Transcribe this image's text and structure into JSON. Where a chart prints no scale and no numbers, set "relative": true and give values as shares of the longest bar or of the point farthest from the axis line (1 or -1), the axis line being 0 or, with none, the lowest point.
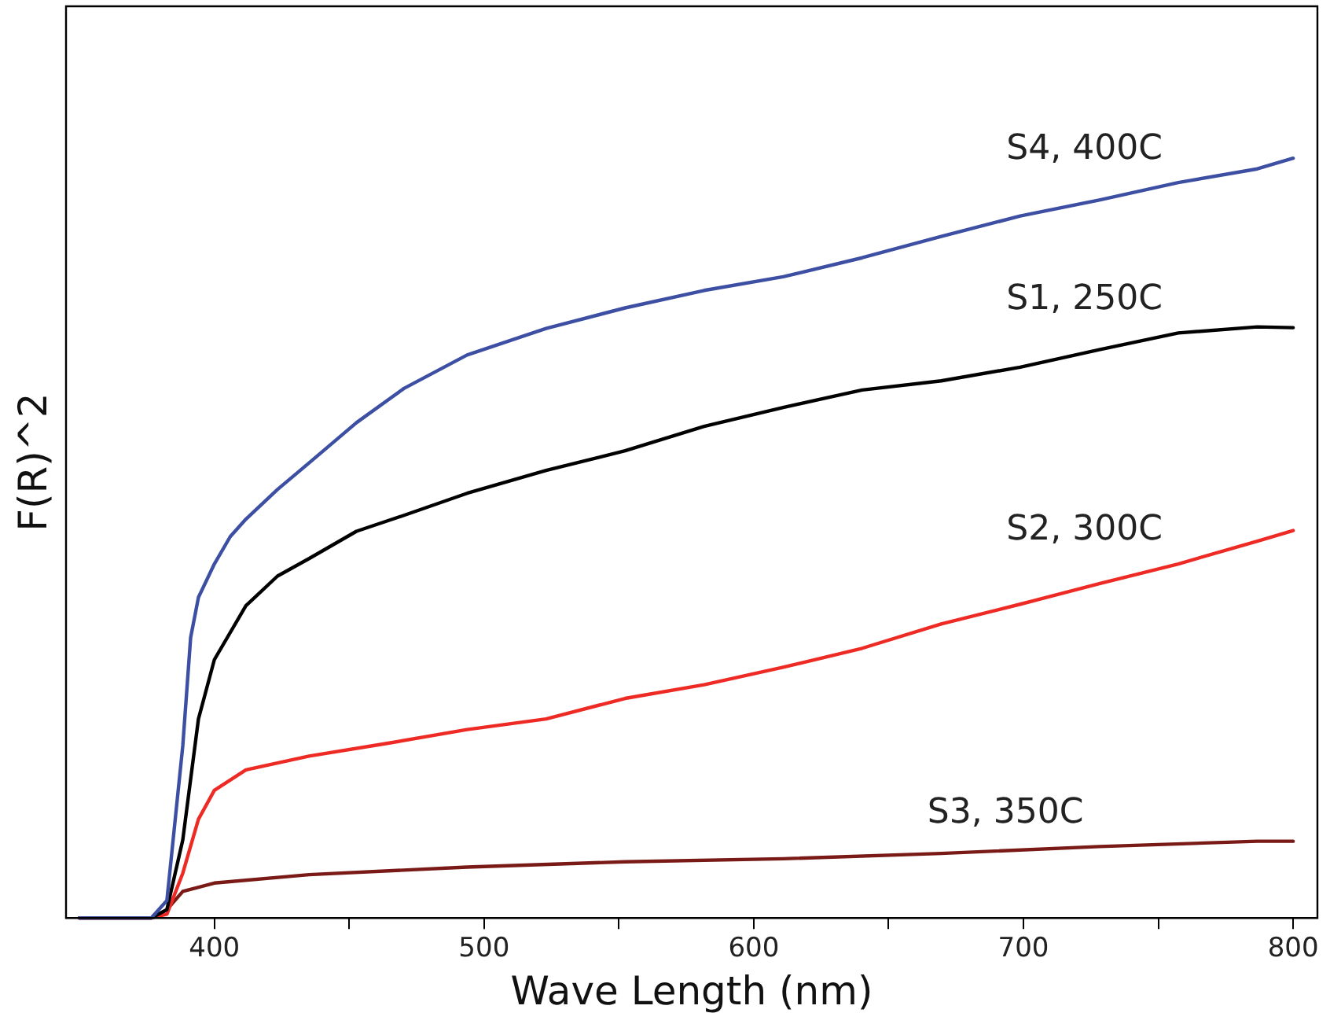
{
  "chart_data": {
    "type": "line",
    "xlabel": "Wave Length (nm)",
    "ylabel": "F(R)^2",
    "relative": true,
    "xlim": [
      345,
      809
    ],
    "xticks": [
      400,
      {
        "value": 450,
        "label": null
      },
      500,
      {
        "value": 550,
        "label": null
      },
      600,
      {
        "value": 650,
        "label": null
      },
      700,
      {
        "value": 750,
        "label": null
      },
      800
    ],
    "grid": false,
    "legend": false,
    "marker": "none",
    "line_style": "solid",
    "series": [
      {
        "name": "S4, 400C",
        "color": "#3d4fa3",
        "x": [
          350,
          376.6,
          382.4,
          388.3,
          391.2,
          394.1,
          400,
          405.9,
          411.7,
          423.4,
          435.1,
          452.7,
          470.3,
          493.7,
          523,
          552.3,
          581.6,
          610.9,
          640.2,
          669.5,
          698.8,
          728.1,
          757.4,
          786.7,
          800
        ],
        "values": [
          0,
          0,
          0.023,
          0.227,
          0.369,
          0.422,
          0.466,
          0.502,
          0.525,
          0.564,
          0.599,
          0.652,
          0.697,
          0.741,
          0.776,
          0.803,
          0.826,
          0.844,
          0.869,
          0.897,
          0.924,
          0.945,
          0.968,
          0.986,
          1
        ]
      },
      {
        "name": "S1, 250C",
        "color": "#000000",
        "x": [
          350,
          376.6,
          382.4,
          388.3,
          394.1,
          400,
          411.7,
          423.4,
          435.1,
          452.7,
          470.3,
          493.7,
          523,
          552.3,
          581.6,
          610.9,
          640.2,
          669.5,
          698.8,
          728.1,
          757.4,
          786.7,
          800
        ],
        "values": [
          0,
          0,
          0.011,
          0.103,
          0.262,
          0.34,
          0.411,
          0.45,
          0.473,
          0.509,
          0.53,
          0.559,
          0.589,
          0.615,
          0.647,
          0.672,
          0.695,
          0.707,
          0.725,
          0.748,
          0.77,
          0.778,
          0.777
        ]
      },
      {
        "name": "S2, 300C",
        "color": "#ee2a24",
        "x": [
          350,
          376.6,
          382.4,
          388.3,
          394.1,
          400,
          411.7,
          435.1,
          464.4,
          493.7,
          523,
          552.3,
          581.6,
          610.9,
          640.2,
          669.5,
          698.8,
          728.1,
          757.4,
          786.7,
          800
        ],
        "values": [
          0,
          0,
          0.005,
          0.059,
          0.13,
          0.168,
          0.195,
          0.213,
          0.23,
          0.248,
          0.262,
          0.289,
          0.307,
          0.33,
          0.355,
          0.387,
          0.413,
          0.44,
          0.466,
          0.496,
          0.51
        ]
      },
      {
        "name": "S3, 350C",
        "color": "#7a1a17",
        "x": [
          350,
          376.6,
          382.4,
          388.3,
          400,
          435.1,
          493.7,
          552.3,
          610.9,
          669.5,
          728.1,
          786.7,
          800
        ],
        "values": [
          0,
          0,
          0.011,
          0.035,
          0.046,
          0.057,
          0.067,
          0.074,
          0.078,
          0.085,
          0.094,
          0.101,
          0.101
        ]
      }
    ]
  }
}
